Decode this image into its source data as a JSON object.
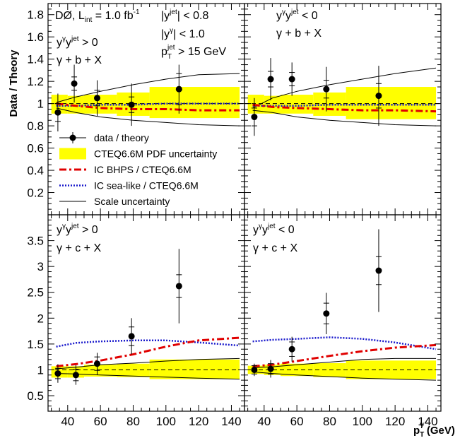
{
  "figure": {
    "ylabel": "Data / Theory",
    "xlabel_main": "p",
    "xlabel_sub": "T",
    "xlabel_sup": "γ",
    "xlabel_units": "(GeV)",
    "lum_prefix": "DØ, L",
    "lum_sub": "int",
    "lum_value": " = 1.0 fb",
    "lum_sup": "-1",
    "cut1_pre": "|y",
    "cut1_sup": "jet",
    "cut1_post": "| < 0.8",
    "cut2_pre": "|y",
    "cut2_sup": "γ",
    "cut2_post": "| < 1.0",
    "cut3_pre": "p",
    "cut3_sub": "T",
    "cut3_sup": "jet",
    "cut3_post": " > 15 GeV"
  },
  "legend": {
    "items": [
      {
        "label": "data / theory",
        "style": "marker"
      },
      {
        "label": "CTEQ6.6M PDF uncertainty",
        "style": "band",
        "color": "#ffff00"
      },
      {
        "label": "IC BHPS / CTEQ6.6M",
        "style": "dashdot",
        "color": "#e00000"
      },
      {
        "label": "IC sea-like / CTEQ6.6M",
        "style": "dotted",
        "color": "#0000cc"
      },
      {
        "label": "Scale uncertainty",
        "style": "line",
        "color": "#000000"
      }
    ]
  },
  "chart_data": [
    {
      "type": "scatter",
      "panel": "top-left",
      "label_line1_pre": "y",
      "label_line1_sup1": "γ",
      "label_line1_mid": "y",
      "label_line1_sup2": "jet",
      "label_line1_post": " > 0",
      "label_line2": "γ + b + X",
      "xlim": [
        28,
        148
      ],
      "ylim": [
        0,
        1.9
      ],
      "yticks": [
        "0.2",
        "0.4",
        "0.6",
        "0.8",
        "1",
        "1.2",
        "1.4",
        "1.6",
        "1.8"
      ],
      "ytick_values": [
        0.2,
        0.4,
        0.6,
        0.8,
        1.0,
        1.2,
        1.4,
        1.6,
        1.8
      ],
      "points": [
        {
          "x": 34,
          "y": 0.92,
          "stat": 0.08,
          "tot": 0.17
        },
        {
          "x": 44,
          "y": 1.18,
          "stat": 0.06,
          "tot": 0.17
        },
        {
          "x": 58,
          "y": 1.05,
          "stat": 0.07,
          "tot": 0.16
        },
        {
          "x": 79,
          "y": 0.99,
          "stat": 0.07,
          "tot": 0.19
        },
        {
          "x": 108,
          "y": 1.13,
          "stat": 0.14,
          "tot": 0.22
        }
      ],
      "band": [
        {
          "x0": 30,
          "x1": 40,
          "lo": 0.91,
          "hi": 1.08
        },
        {
          "x0": 40,
          "x1": 50,
          "lo": 0.91,
          "hi": 1.07
        },
        {
          "x0": 50,
          "x1": 70,
          "lo": 0.91,
          "hi": 1.08
        },
        {
          "x0": 70,
          "x1": 90,
          "lo": 0.89,
          "hi": 1.1
        },
        {
          "x0": 90,
          "x1": 145,
          "lo": 0.87,
          "hi": 1.15
        }
      ],
      "bhps": {
        "x": [
          33,
          45,
          60,
          80,
          100,
          120,
          145
        ],
        "y": [
          1.0,
          0.98,
          0.96,
          0.95,
          0.95,
          0.94,
          0.94
        ]
      },
      "sea": {
        "x": [
          33,
          45,
          60,
          80,
          100,
          120,
          145
        ],
        "y": [
          0.98,
          0.98,
          0.99,
          0.99,
          1.0,
          1.0,
          1.0
        ]
      },
      "scale_up": {
        "x": [
          33,
          45,
          60,
          80,
          100,
          120,
          145
        ],
        "y": [
          1.01,
          1.06,
          1.11,
          1.17,
          1.22,
          1.26,
          1.27
        ]
      },
      "scale_dn": {
        "x": [
          33,
          45,
          60,
          80,
          100,
          120,
          145
        ],
        "y": [
          0.96,
          0.92,
          0.88,
          0.85,
          0.83,
          0.81,
          0.8
        ]
      }
    },
    {
      "type": "scatter",
      "panel": "top-right",
      "label_line1_pre": "y",
      "label_line1_sup1": "γ",
      "label_line1_mid": "y",
      "label_line1_sup2": "jet",
      "label_line1_post": " < 0",
      "label_line2": "γ + b + X",
      "xlim": [
        28,
        148
      ],
      "ylim": [
        0,
        1.9
      ],
      "points": [
        {
          "x": 34,
          "y": 0.88,
          "stat": 0.08,
          "tot": 0.17
        },
        {
          "x": 44,
          "y": 1.22,
          "stat": 0.07,
          "tot": 0.19
        },
        {
          "x": 57,
          "y": 1.22,
          "stat": 0.06,
          "tot": 0.15
        },
        {
          "x": 78,
          "y": 1.13,
          "stat": 0.08,
          "tot": 0.2
        },
        {
          "x": 110,
          "y": 1.07,
          "stat": 0.11,
          "tot": 0.27
        }
      ],
      "band": [
        {
          "x0": 30,
          "x1": 40,
          "lo": 0.91,
          "hi": 1.08
        },
        {
          "x0": 40,
          "x1": 50,
          "lo": 0.91,
          "hi": 1.07
        },
        {
          "x0": 50,
          "x1": 70,
          "lo": 0.91,
          "hi": 1.08
        },
        {
          "x0": 70,
          "x1": 90,
          "lo": 0.89,
          "hi": 1.1
        },
        {
          "x0": 90,
          "x1": 145,
          "lo": 0.86,
          "hi": 1.15
        }
      ],
      "bhps": {
        "x": [
          33,
          45,
          60,
          80,
          100,
          120,
          145
        ],
        "y": [
          0.99,
          0.97,
          0.96,
          0.95,
          0.94,
          0.94,
          0.93
        ]
      },
      "sea": {
        "x": [
          33,
          45,
          60,
          80,
          100,
          120,
          145
        ],
        "y": [
          0.98,
          0.98,
          0.98,
          0.99,
          0.99,
          0.99,
          0.99
        ]
      },
      "scale_up": {
        "x": [
          33,
          45,
          60,
          80,
          100,
          120,
          145
        ],
        "y": [
          0.96,
          1.05,
          1.11,
          1.17,
          1.22,
          1.27,
          1.32
        ]
      },
      "scale_dn": {
        "x": [
          33,
          45,
          60,
          80,
          100,
          120,
          145
        ],
        "y": [
          0.94,
          0.92,
          0.88,
          0.85,
          0.83,
          0.81,
          0.8
        ]
      }
    },
    {
      "type": "scatter",
      "panel": "bottom-left",
      "label_line1_pre": "y",
      "label_line1_sup1": "γ",
      "label_line1_mid": "y",
      "label_line1_sup2": "jet",
      "label_line1_post": " > 0",
      "label_line2": "γ + c + X",
      "xlim": [
        28,
        148
      ],
      "ylim": [
        0.2,
        4.0
      ],
      "yticks": [
        "0.5",
        "1",
        "1.5",
        "2",
        "2.5",
        "3",
        "3.5"
      ],
      "ytick_values": [
        0.5,
        1.0,
        1.5,
        2.0,
        2.5,
        3.0,
        3.5
      ],
      "xticks": [
        "40",
        "60",
        "80",
        "100",
        "120",
        "140"
      ],
      "xtick_values": [
        40,
        60,
        80,
        100,
        120,
        140
      ],
      "points": [
        {
          "x": 34,
          "y": 0.93,
          "stat": 0.1,
          "tot": 0.18
        },
        {
          "x": 45,
          "y": 0.9,
          "stat": 0.11,
          "tot": 0.19
        },
        {
          "x": 58,
          "y": 1.12,
          "stat": 0.13,
          "tot": 0.21
        },
        {
          "x": 79,
          "y": 1.65,
          "stat": 0.18,
          "tot": 0.35
        },
        {
          "x": 108,
          "y": 2.62,
          "stat": 0.22,
          "tot": 0.72
        }
      ],
      "band": [
        {
          "x0": 30,
          "x1": 40,
          "lo": 0.85,
          "hi": 1.07
        },
        {
          "x0": 40,
          "x1": 50,
          "lo": 0.85,
          "hi": 1.07
        },
        {
          "x0": 50,
          "x1": 70,
          "lo": 0.87,
          "hi": 1.1
        },
        {
          "x0": 70,
          "x1": 90,
          "lo": 0.86,
          "hi": 1.12
        },
        {
          "x0": 90,
          "x1": 145,
          "lo": 0.82,
          "hi": 1.2
        }
      ],
      "bhps": {
        "x": [
          33,
          45,
          60,
          80,
          100,
          120,
          145
        ],
        "y": [
          1.07,
          1.11,
          1.18,
          1.3,
          1.45,
          1.57,
          1.62
        ]
      },
      "sea": {
        "x": [
          33,
          45,
          60,
          80,
          100,
          120,
          145
        ],
        "y": [
          1.45,
          1.52,
          1.55,
          1.57,
          1.57,
          1.53,
          1.47
        ]
      },
      "scale_up": {
        "x": [
          33,
          45,
          60,
          80,
          100,
          120,
          145
        ],
        "y": [
          1.02,
          1.05,
          1.1,
          1.13,
          1.17,
          1.2,
          1.22
        ]
      },
      "scale_dn": {
        "x": [
          33,
          45,
          60,
          80,
          100,
          120,
          145
        ],
        "y": [
          0.93,
          0.92,
          0.9,
          0.88,
          0.86,
          0.84,
          0.82
        ]
      }
    },
    {
      "type": "scatter",
      "panel": "bottom-right",
      "label_line1_pre": "y",
      "label_line1_sup1": "γ",
      "label_line1_mid": "y",
      "label_line1_sup2": "jet",
      "label_line1_post": " < 0",
      "label_line2": "γ + c + X",
      "xlim": [
        28,
        148
      ],
      "ylim": [
        0.2,
        4.0
      ],
      "xticks": [
        "40",
        "60",
        "80",
        "100",
        "120",
        "140"
      ],
      "xtick_values": [
        40,
        60,
        80,
        100,
        120,
        140
      ],
      "points": [
        {
          "x": 34,
          "y": 1.0,
          "stat": 0.08,
          "tot": 0.12
        },
        {
          "x": 44,
          "y": 1.02,
          "stat": 0.1,
          "tot": 0.17
        },
        {
          "x": 57,
          "y": 1.4,
          "stat": 0.14,
          "tot": 0.24
        },
        {
          "x": 78,
          "y": 2.09,
          "stat": 0.2,
          "tot": 0.4
        },
        {
          "x": 110,
          "y": 2.92,
          "stat": 0.27,
          "tot": 0.8
        }
      ],
      "band": [
        {
          "x0": 30,
          "x1": 40,
          "lo": 0.92,
          "hi": 1.08
        },
        {
          "x0": 40,
          "x1": 50,
          "lo": 0.9,
          "hi": 1.1
        },
        {
          "x0": 50,
          "x1": 70,
          "lo": 0.88,
          "hi": 1.12
        },
        {
          "x0": 70,
          "x1": 90,
          "lo": 0.86,
          "hi": 1.13
        },
        {
          "x0": 90,
          "x1": 145,
          "lo": 0.82,
          "hi": 1.18
        }
      ],
      "bhps": {
        "x": [
          33,
          45,
          60,
          80,
          100,
          120,
          145
        ],
        "y": [
          1.07,
          1.1,
          1.17,
          1.27,
          1.36,
          1.43,
          1.48
        ]
      },
      "sea": {
        "x": [
          33,
          45,
          60,
          80,
          100,
          120,
          145
        ],
        "y": [
          1.55,
          1.58,
          1.6,
          1.63,
          1.6,
          1.53,
          1.4
        ]
      },
      "scale_up": {
        "x": [
          33,
          45,
          60,
          80,
          100,
          120,
          145
        ],
        "y": [
          1.04,
          1.06,
          1.1,
          1.15,
          1.2,
          1.22,
          1.22
        ]
      },
      "scale_dn": {
        "x": [
          33,
          45,
          60,
          80,
          100,
          120,
          145
        ],
        "y": [
          0.96,
          0.93,
          0.9,
          0.87,
          0.84,
          0.82,
          0.8
        ]
      }
    }
  ]
}
